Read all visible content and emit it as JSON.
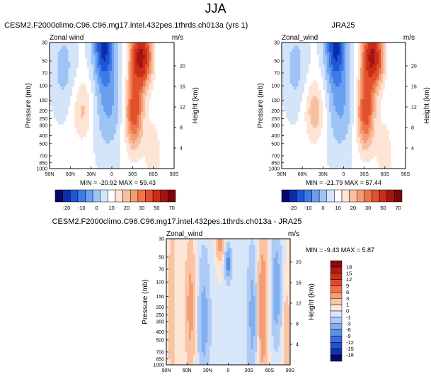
{
  "page": {
    "title": "JJA"
  },
  "panels": [
    {
      "title": "CESM2.F2000climo.C96.C96.mg17.intel.432pes.1thrds.ch013a (yrs 1)",
      "variable": "Zonal wind",
      "units": "m/s",
      "minmax": "MIN = -20.92   MAX = 59.43"
    },
    {
      "title": "JRA25",
      "variable": "Zonal_wind",
      "units": "m/s",
      "minmax": "MIN = -21.79   MAX = 57.44"
    },
    {
      "title": "CESM2.F2000climo.C96.C96.mg17.intel.432pes.1thrds.ch013a - JRA25",
      "variable": "Zonal_wind",
      "units": "m/s",
      "minmax": "MIN =  -9.43  MAX =   5.87"
    }
  ],
  "colorbar_abs": {
    "labels": [
      "-20",
      "-10",
      "0",
      "10",
      "20",
      "30",
      "50",
      "70"
    ],
    "colors": [
      "#08086b",
      "#0b2ea8",
      "#1f56d6",
      "#3d7ae8",
      "#6a9ff0",
      "#9ec3f6",
      "#d4e4f9",
      "#ffffff",
      "#fde4d4",
      "#f9c0a0",
      "#f59c74",
      "#ef7548",
      "#e0502a",
      "#c92d1a",
      "#a4150f",
      "#7a0606"
    ]
  },
  "colorbar_diff": {
    "labels": [
      "18",
      "15",
      "12",
      "9",
      "6",
      "3",
      "1",
      "0",
      "-1",
      "-3",
      "-6",
      "-9",
      "-12",
      "-15",
      "-18"
    ],
    "colors": [
      "#8a0a0a",
      "#b01a12",
      "#cc2c1c",
      "#e04a2c",
      "#ee7248",
      "#f59c74",
      "#f9c4a4",
      "#fde6d6",
      "#d8e6fa",
      "#aecbf6",
      "#82aef2",
      "#5a8eea",
      "#3a6ee0",
      "#2350d0",
      "#1230b4",
      "#08086b"
    ]
  },
  "chart_data": [
    {
      "type": "heatmap",
      "title": "CESM2.F2000climo.C96.C96.mg17.intel.432pes.1thrds.ch013a (yrs 1)",
      "xlabel": "",
      "ylabel": "Pressure (mb)",
      "y2label": "Height (km)",
      "x_ticks": [
        "90N",
        "60N",
        "30N",
        "0",
        "30S",
        "60S",
        "90S"
      ],
      "y_ticks": [
        30,
        50,
        70,
        100,
        150,
        200,
        250,
        300,
        400,
        500,
        700,
        850,
        1000
      ],
      "y2_ticks": [
        4,
        8,
        12,
        16,
        20
      ],
      "ylog": true,
      "min": -20.92,
      "max": 59.43,
      "features": [
        {
          "lat": -45,
          "p": 50,
          "u": 59
        },
        {
          "lat": -35,
          "p": 200,
          "u": 35
        },
        {
          "lat": 40,
          "p": 200,
          "u": 14
        },
        {
          "lat": 15,
          "p": 30,
          "u": -21
        }
      ]
    },
    {
      "type": "heatmap",
      "title": "JRA25",
      "ylabel": "Pressure (mb)",
      "y2label": "Height (km)",
      "x_ticks": [
        "90N",
        "60N",
        "30N",
        "0",
        "30S",
        "60S",
        "90S"
      ],
      "y_ticks": [
        30,
        50,
        70,
        100,
        150,
        200,
        250,
        300,
        400,
        500,
        700,
        850,
        1000
      ],
      "y2_ticks": [
        4,
        8,
        12,
        16,
        20
      ],
      "ylog": true,
      "min": -21.79,
      "max": 57.44,
      "features": [
        {
          "lat": -45,
          "p": 50,
          "u": 57
        },
        {
          "lat": -35,
          "p": 200,
          "u": 33
        },
        {
          "lat": 40,
          "p": 200,
          "u": 18
        },
        {
          "lat": 15,
          "p": 30,
          "u": -22
        }
      ]
    },
    {
      "type": "heatmap",
      "title": "CESM2.F2000climo.C96.C96.mg17.intel.432pes.1thrds.ch013a - JRA25",
      "ylabel": "Pressure (mb)",
      "y2label": "Height (km)",
      "x_ticks": [
        "90N",
        "60N",
        "30N",
        "0",
        "30S",
        "60S",
        "90S"
      ],
      "y_ticks": [
        30,
        50,
        70,
        100,
        150,
        200,
        250,
        300,
        400,
        500,
        700,
        850,
        1000
      ],
      "y2_ticks": [
        4,
        8,
        12,
        16,
        20
      ],
      "ylog": true,
      "min": -9.43,
      "max": 5.87
    }
  ]
}
